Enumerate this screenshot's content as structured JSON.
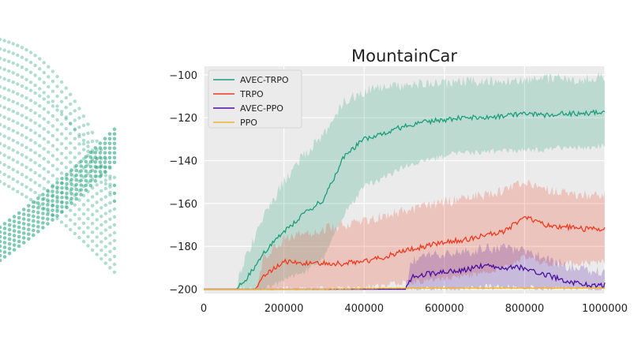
{
  "chart_data": {
    "type": "line",
    "title": "MountainCar",
    "xlabel": "",
    "ylabel": "",
    "xlim": [
      0,
      1000000
    ],
    "ylim": [
      -202,
      -96
    ],
    "x_ticks": [
      0,
      200000,
      400000,
      600000,
      800000,
      1000000
    ],
    "x_tick_labels": [
      "0",
      "200000",
      "400000",
      "600000",
      "800000",
      "1000000"
    ],
    "y_ticks": [
      -100,
      -120,
      -140,
      -160,
      -180,
      -200
    ],
    "y_tick_labels": [
      "−100",
      "−120",
      "−140",
      "−160",
      "−180",
      "−200"
    ],
    "grid": true,
    "plot_background": "#ebebeb",
    "legend_position": "top-left",
    "series": [
      {
        "name": "AVEC-TRPO",
        "color": "#1a9e77",
        "x": [
          0,
          80000,
          100000,
          150000,
          200000,
          250000,
          300000,
          350000,
          400000,
          450000,
          500000,
          550000,
          600000,
          650000,
          700000,
          750000,
          800000,
          850000,
          900000,
          950000,
          1000000
        ],
        "mean": [
          -200,
          -200,
          -197,
          -183,
          -173,
          -165,
          -158,
          -138,
          -130,
          -127,
          -124,
          -122,
          -121,
          -120,
          -120,
          -119,
          -118,
          -119,
          -118,
          -118,
          -117
        ],
        "lower": [
          -200,
          -200,
          -200,
          -200,
          -196,
          -192,
          -185,
          -165,
          -152,
          -148,
          -143,
          -140,
          -138,
          -136,
          -136,
          -135,
          -135,
          -135,
          -134,
          -134,
          -133
        ],
        "upper": [
          -200,
          -200,
          -188,
          -165,
          -150,
          -137,
          -128,
          -112,
          -108,
          -106,
          -105,
          -104,
          -104,
          -103,
          -103,
          -103,
          -102,
          -102,
          -102,
          -102,
          -101
        ]
      },
      {
        "name": "TRPO",
        "color": "#f03a1f",
        "x": [
          0,
          130000,
          150000,
          200000,
          250000,
          300000,
          350000,
          400000,
          450000,
          500000,
          550000,
          600000,
          650000,
          700000,
          750000,
          800000,
          850000,
          900000,
          950000,
          1000000
        ],
        "mean": [
          -200,
          -200,
          -194,
          -187,
          -188,
          -188,
          -188,
          -187,
          -185,
          -182,
          -180,
          -178,
          -177,
          -175,
          -173,
          -166,
          -170,
          -171,
          -172,
          -172
        ],
        "lower": [
          -200,
          -200,
          -200,
          -200,
          -200,
          -200,
          -200,
          -199,
          -198,
          -197,
          -196,
          -195,
          -194,
          -192,
          -190,
          -185,
          -188,
          -188,
          -188,
          -187
        ],
        "upper": [
          -200,
          -200,
          -186,
          -176,
          -174,
          -172,
          -170,
          -168,
          -166,
          -163,
          -161,
          -159,
          -158,
          -156,
          -154,
          -150,
          -153,
          -155,
          -156,
          -156
        ]
      },
      {
        "name": "AVEC-PPO",
        "color": "#4b0ea0",
        "x": [
          0,
          500000,
          520000,
          550000,
          600000,
          650000,
          700000,
          750000,
          800000,
          850000,
          900000,
          950000,
          1000000
        ],
        "mean": [
          -200,
          -200,
          -194,
          -193,
          -192,
          -191,
          -189,
          -190,
          -190,
          -193,
          -196,
          -198,
          -198
        ],
        "lower": [
          -200,
          -200,
          -200,
          -200,
          -200,
          -200,
          -199,
          -199,
          -199,
          -200,
          -200,
          -200,
          -200
        ],
        "upper": [
          -200,
          -200,
          -187,
          -184,
          -184,
          -183,
          -181,
          -181,
          -182,
          -185,
          -189,
          -191,
          -192
        ]
      },
      {
        "name": "PPO",
        "color": "#f0b429",
        "x": [
          0,
          250000,
          500000,
          750000,
          1000000
        ],
        "mean": [
          -200,
          -200,
          -199.5,
          -199.5,
          -199.5
        ],
        "lower": [
          -200,
          -200,
          -200,
          -200,
          -200
        ],
        "upper": [
          -200,
          -199.5,
          -199,
          -199,
          -199
        ]
      }
    ],
    "left_fragment": {
      "color": "#1a9e77"
    }
  }
}
